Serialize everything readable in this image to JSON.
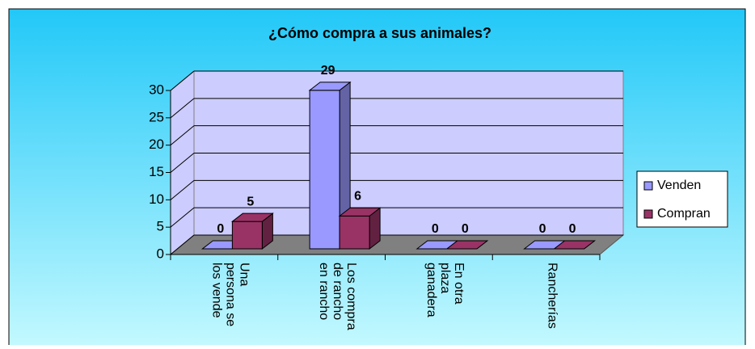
{
  "chart_data": {
    "type": "bar3d",
    "title": "¿Cómo compra a sus animales?",
    "categories": [
      "Una persona se los vende",
      "Los compra de rancho en rancho",
      "En otra plaza ganadera",
      "Rancherías"
    ],
    "series": [
      {
        "name": "Venden",
        "color": "#9999ff",
        "values": [
          0,
          29,
          0,
          0
        ]
      },
      {
        "name": "Compran",
        "color": "#993366",
        "values": [
          5,
          6,
          0,
          0
        ]
      }
    ],
    "ylim": [
      0,
      30
    ],
    "yticks": [
      0,
      5,
      10,
      15,
      20,
      25,
      30
    ],
    "grid": true,
    "legend": "right"
  }
}
